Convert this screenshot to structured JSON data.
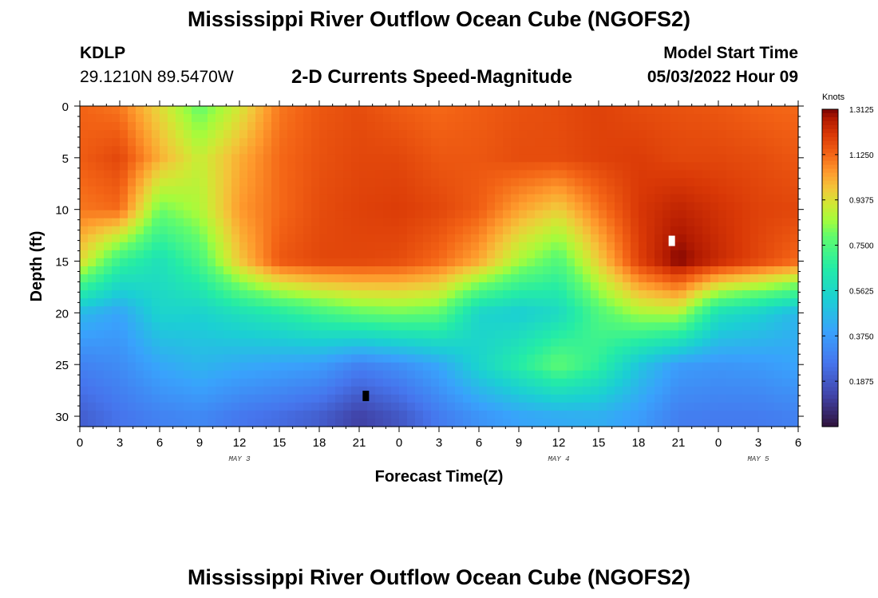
{
  "header": {
    "title": "Mississippi River Outflow Ocean Cube (NGOFS2)",
    "station_id": "KDLP",
    "station_coords": "29.1210N  89.5470W",
    "subtitle": "2-D Currents Speed-Magnitude",
    "model_start_label": "Model Start Time",
    "model_start_value": "05/03/2022 Hour 09"
  },
  "footer": {
    "title": "Mississippi River Outflow Ocean Cube (NGOFS2)"
  },
  "chart_data": {
    "type": "heatmap",
    "title": "2-D Currents Speed-Magnitude",
    "xlabel": "Forecast Time(Z)",
    "ylabel": "Depth (ft)",
    "xlim": [
      0,
      54
    ],
    "ylim": [
      31,
      0
    ],
    "x_ticks": [
      {
        "value": 0,
        "label": "0"
      },
      {
        "value": 3,
        "label": "3"
      },
      {
        "value": 6,
        "label": "6"
      },
      {
        "value": 9,
        "label": "9"
      },
      {
        "value": 12,
        "label": "12"
      },
      {
        "value": 15,
        "label": "15"
      },
      {
        "value": 18,
        "label": "18"
      },
      {
        "value": 21,
        "label": "21"
      },
      {
        "value": 24,
        "label": "0"
      },
      {
        "value": 27,
        "label": "3"
      },
      {
        "value": 30,
        "label": "6"
      },
      {
        "value": 33,
        "label": "9"
      },
      {
        "value": 36,
        "label": "12"
      },
      {
        "value": 39,
        "label": "15"
      },
      {
        "value": 42,
        "label": "18"
      },
      {
        "value": 45,
        "label": "21"
      },
      {
        "value": 48,
        "label": "0"
      },
      {
        "value": 51,
        "label": "3"
      },
      {
        "value": 54,
        "label": "6"
      }
    ],
    "y_ticks": [
      0,
      5,
      10,
      15,
      20,
      25,
      30
    ],
    "date_labels": [
      {
        "value": 12,
        "label": "MAY 3"
      },
      {
        "value": 36,
        "label": "MAY 4"
      },
      {
        "value": 51,
        "label": "MAY 5"
      }
    ],
    "colorbar": {
      "unit": "Knots",
      "min": 0,
      "max": 1.3125,
      "ticks": [
        1.3125,
        1.125,
        0.9375,
        0.75,
        0.5625,
        0.375,
        0.1875
      ],
      "tick_labels": [
        "1.3125",
        "1.1250",
        "0.9375",
        "0.7500",
        "0.5625",
        "0.3750",
        "0.1875"
      ]
    },
    "speed_field_knots": {
      "columns_hours": [
        0,
        3,
        6,
        9,
        12,
        15,
        18,
        21,
        24,
        27,
        30,
        33,
        36,
        39,
        42,
        45,
        48,
        51,
        54
      ],
      "rows_depth_ft": [
        0,
        5,
        10,
        15,
        20,
        25,
        30
      ],
      "values": [
        [
          1.13,
          1.1,
          0.95,
          0.78,
          0.92,
          1.1,
          1.15,
          1.17,
          1.14,
          1.12,
          1.14,
          1.16,
          1.17,
          1.19,
          1.17,
          1.16,
          1.15,
          1.13,
          1.12
        ],
        [
          1.14,
          1.18,
          1.02,
          0.9,
          1.02,
          1.12,
          1.16,
          1.18,
          1.18,
          1.15,
          1.15,
          1.17,
          1.17,
          1.19,
          1.2,
          1.18,
          1.18,
          1.17,
          1.15
        ],
        [
          1.1,
          1.12,
          0.8,
          0.87,
          1.05,
          1.12,
          1.17,
          1.19,
          1.2,
          1.18,
          1.14,
          1.04,
          0.97,
          1.1,
          1.21,
          1.25,
          1.22,
          1.19,
          1.18
        ],
        [
          0.95,
          0.7,
          0.6,
          0.73,
          0.98,
          1.15,
          1.18,
          1.18,
          1.17,
          1.12,
          1.03,
          0.86,
          0.75,
          0.97,
          1.19,
          1.31,
          1.24,
          1.18,
          1.12
        ],
        [
          0.46,
          0.4,
          0.55,
          0.54,
          0.6,
          0.65,
          0.72,
          0.78,
          0.8,
          0.78,
          0.55,
          0.52,
          0.57,
          0.75,
          0.86,
          0.88,
          0.6,
          0.54,
          0.45
        ],
        [
          0.3,
          0.33,
          0.41,
          0.45,
          0.42,
          0.4,
          0.38,
          0.3,
          0.34,
          0.41,
          0.55,
          0.66,
          0.78,
          0.68,
          0.5,
          0.38,
          0.36,
          0.37,
          0.4
        ],
        [
          0.2,
          0.26,
          0.3,
          0.32,
          0.27,
          0.24,
          0.2,
          0.12,
          0.18,
          0.28,
          0.35,
          0.4,
          0.42,
          0.43,
          0.38,
          0.29,
          0.28,
          0.28,
          0.3
        ]
      ]
    },
    "markers": [
      {
        "x": 21.5,
        "y": 28,
        "color": "#000000",
        "note": "minimum"
      },
      {
        "x": 44.5,
        "y": 13,
        "color": "#ffffff",
        "note": "maximum"
      }
    ]
  }
}
